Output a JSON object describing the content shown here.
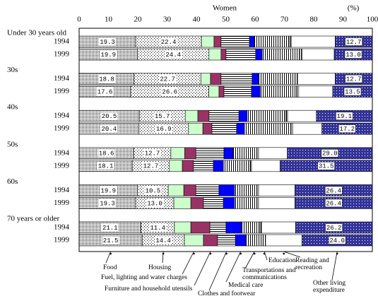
{
  "chart_data": {
    "type": "bar",
    "orientation": "horizontal",
    "stacked": true,
    "title": "Women",
    "unit_label": "(%)",
    "groups": [
      "Under 30 years old",
      "30s",
      "40s",
      "50s",
      "60s",
      "70 years or older"
    ],
    "categories": [
      "1994",
      "1999",
      "1994",
      "1999",
      "1994",
      "1999",
      "1994",
      "1999",
      "1994",
      "1999",
      "1994",
      "1999"
    ],
    "xlim": [
      0,
      100
    ],
    "xticks": [
      0,
      10,
      20,
      30,
      40,
      50,
      60,
      70,
      80,
      90,
      100
    ],
    "series": [
      {
        "name": "Food",
        "color": "#000000",
        "pattern": "dense-dots",
        "values": [
          19.3,
          19.9,
          18.8,
          17.6,
          20.5,
          20.4,
          18.6,
          18.1,
          19.9,
          19.3,
          21.1,
          21.5
        ],
        "value_labels": [
          "19.3",
          "19.9",
          "18.8",
          "17.6",
          "20.5",
          "20.4",
          "18.6",
          "18.1",
          "19.9",
          "19.3",
          "21.1",
          "21.5"
        ]
      },
      {
        "name": "Housing",
        "color": "#000000",
        "pattern": "sparse-dots",
        "values": [
          22.4,
          24.4,
          22.7,
          26.6,
          15.7,
          16.9,
          12.7,
          12.7,
          10.5,
          13.0,
          11.4,
          14.4
        ],
        "value_labels": [
          "22.4",
          "24.4",
          "22.7",
          "26.6",
          "15.7",
          "16.9",
          "12.7",
          "12.7",
          "10.5",
          "13.0",
          "11.4",
          "14.4"
        ]
      },
      {
        "name": "Fuel, lighting and water charges",
        "color": "#ccffcc",
        "pattern": "solid",
        "values": [
          4.3,
          4.1,
          3.3,
          3.5,
          4.3,
          4.9,
          4.7,
          4.4,
          5.3,
          5.8,
          5.6,
          6.5
        ]
      },
      {
        "name": "Furniture and household utensils",
        "color": "#993366",
        "pattern": "solid",
        "values": [
          2.4,
          1.7,
          3.6,
          1.7,
          3.8,
          3.1,
          3.8,
          3.8,
          4.1,
          4.3,
          6.5,
          4.8
        ]
      },
      {
        "name": "Clothes and footwear",
        "color": "#000000",
        "pattern": "hlines",
        "values": [
          9.7,
          10.1,
          10.6,
          9.4,
          10.2,
          8.4,
          9.6,
          6.8,
          7.9,
          6.8,
          5.5,
          6.1
        ]
      },
      {
        "name": "Medical care",
        "color": "#0000ff",
        "pattern": "solid",
        "values": [
          1.7,
          2.2,
          2.2,
          2.9,
          2.8,
          2.7,
          3.1,
          3.4,
          5.3,
          3.8,
          5.3,
          3.6
        ]
      },
      {
        "name": "Transportations and communications",
        "color": "#000000",
        "pattern": "vlines",
        "values": [
          12.0,
          12.8,
          12.5,
          12.5,
          13.1,
          15.9,
          8.2,
          9.1,
          7.7,
          7.7,
          6.3,
          5.8
        ]
      },
      {
        "name": "Education",
        "color": "#000000",
        "pattern": "vlines",
        "values": [
          0.5,
          0.9,
          0.8,
          0.7,
          0.7,
          0.5,
          0.5,
          0.5,
          0.5,
          0.5,
          0.5,
          0.9
        ]
      },
      {
        "name": "Reading and recreation",
        "color": "#ffffff",
        "pattern": "solid",
        "values": [
          15.0,
          10.9,
          12.8,
          11.6,
          9.8,
          10.0,
          9.8,
          9.7,
          12.4,
          12.4,
          11.6,
          12.4
        ]
      },
      {
        "name": "Other living expenditure",
        "color": "#333399",
        "pattern": "dots-on-color",
        "values": [
          12.7,
          13.0,
          12.7,
          13.5,
          19.1,
          17.2,
          29.0,
          31.5,
          26.4,
          26.4,
          26.2,
          24.0
        ],
        "value_labels": [
          "12.7",
          "13.0",
          "12.7",
          "13.5",
          "19.1",
          "17.2",
          "29.0",
          "31.5",
          "26.4",
          "26.4",
          "26.2",
          "24.0"
        ]
      }
    ]
  }
}
